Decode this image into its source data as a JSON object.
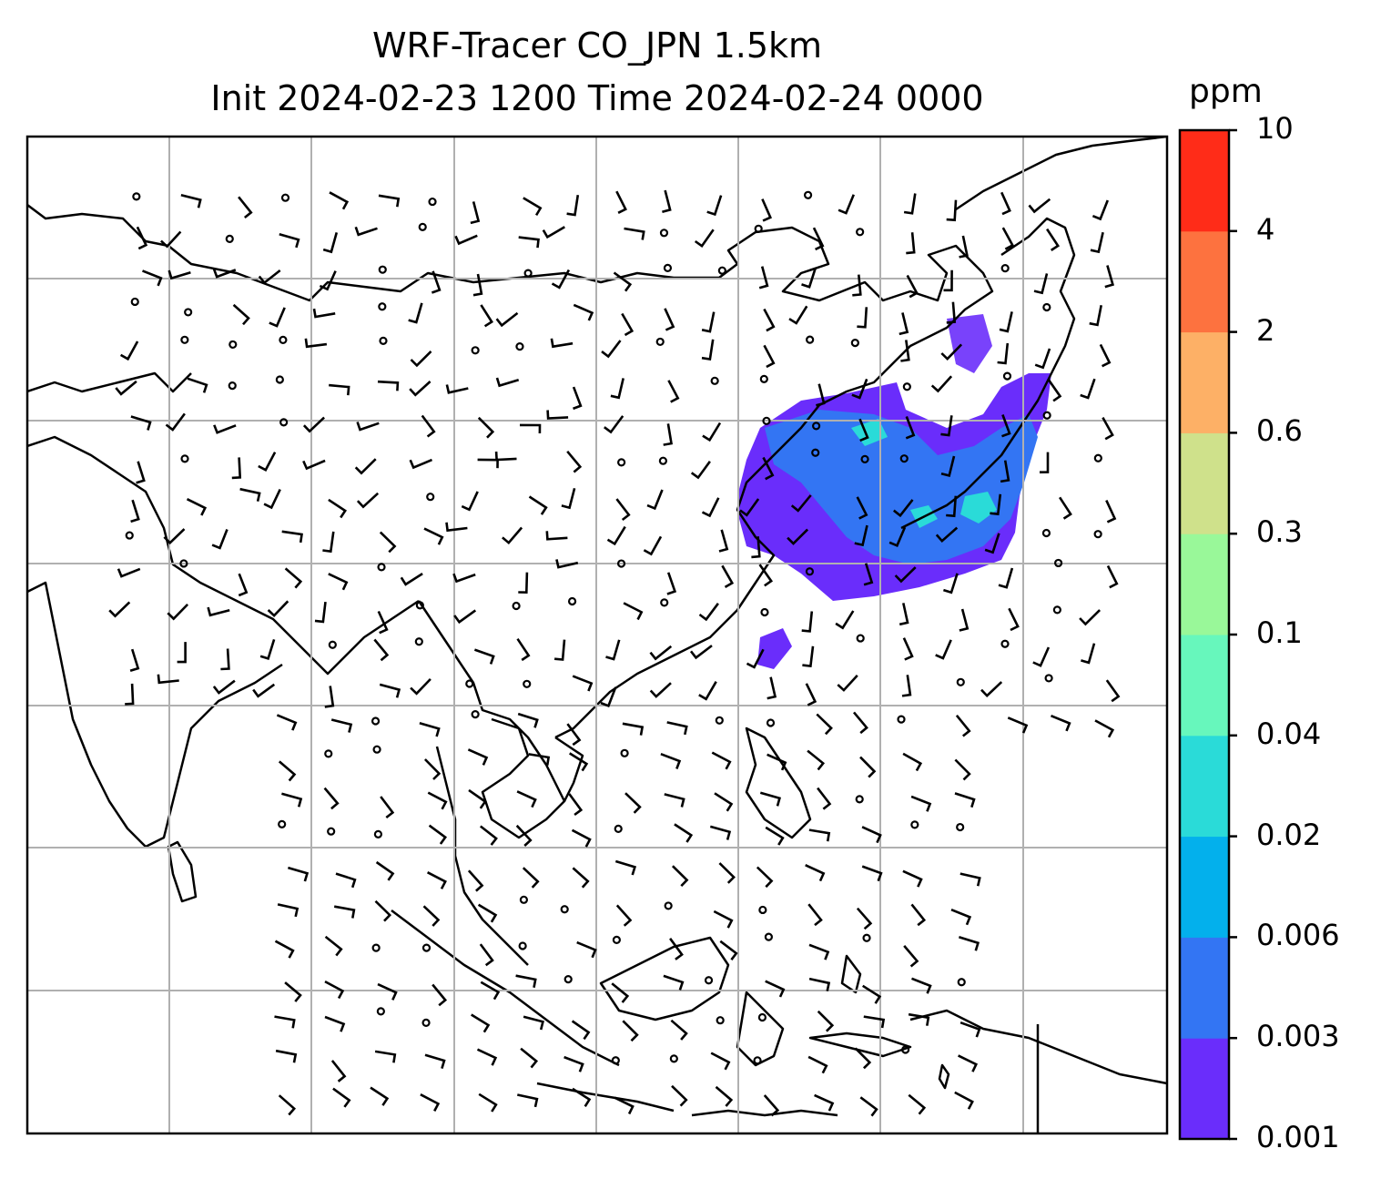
{
  "title": {
    "line1": "WRF-Tracer CO_JPN 1.5km",
    "line2": "Init 2024-02-23 1200 Time 2024-02-24 0000"
  },
  "colorbar": {
    "unit": "ppm",
    "ticks": [
      "10",
      "4",
      "2",
      "0.6",
      "0.3",
      "0.1",
      "0.04",
      "0.02",
      "0.006",
      "0.003",
      "0.001"
    ],
    "colors_bottom_to_top": [
      "#6a2dfb",
      "#3375f3",
      "#03b0ec",
      "#2adbd8",
      "#67f7bc",
      "#99f899",
      "#cfe18b",
      "#fdb066",
      "#fd723f",
      "#ff2c18"
    ]
  },
  "map": {
    "grid": true,
    "grid_color": "#b0b0b0",
    "coastline_color": "#000000",
    "plume_colors": [
      "#6a2dfb",
      "#3375f3",
      "#2adbd8"
    ]
  }
}
